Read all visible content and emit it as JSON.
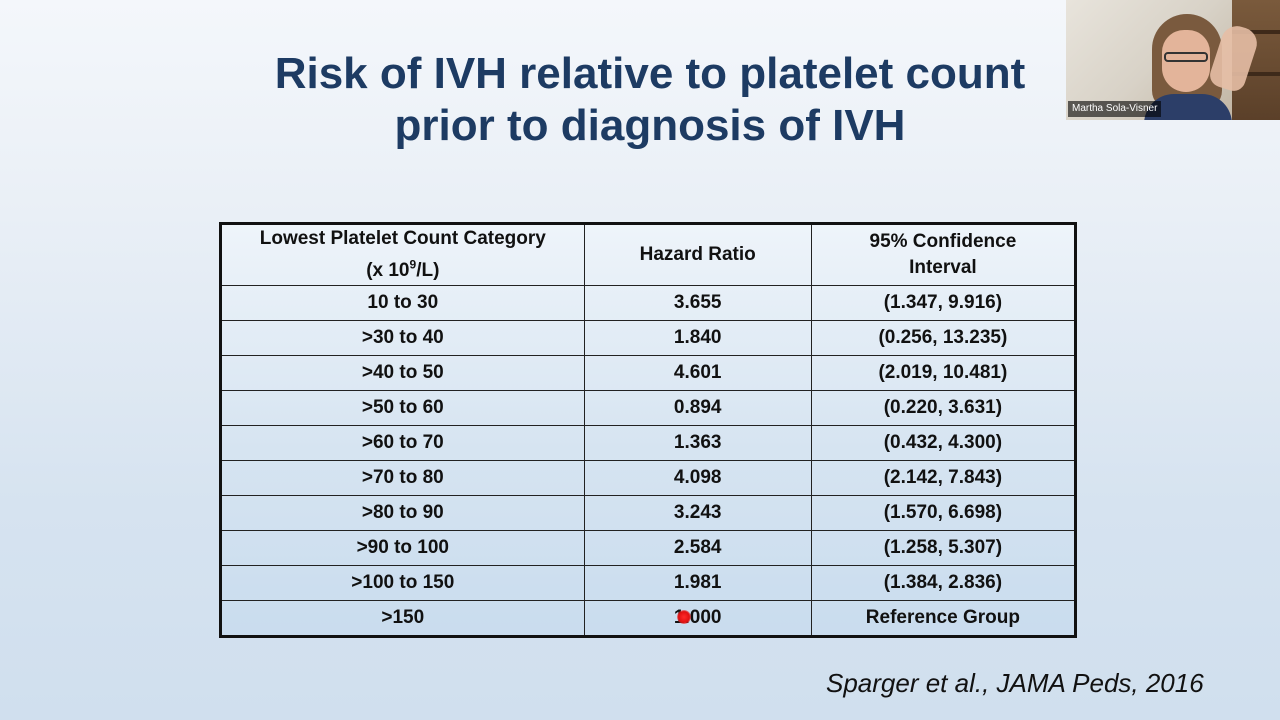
{
  "slide": {
    "title_line1": "Risk of IVH relative to platelet count",
    "title_line2": "prior to diagnosis of IVH",
    "citation": "Sparger et al., JAMA Peds, 2016"
  },
  "table": {
    "headers": {
      "col1_line1": "Lowest Platelet Count Category",
      "col1_unit_prefix": "(x 10",
      "col1_unit_sup": "9",
      "col1_unit_suffix": "/L)",
      "col2": "Hazard Ratio",
      "col3_line1": "95% Confidence",
      "col3_line2": "Interval"
    },
    "rows": [
      {
        "category": "10 to 30",
        "hazard_ratio": "3.655",
        "ci": "(1.347, 9.916)"
      },
      {
        "category": ">30 to 40",
        "hazard_ratio": "1.840",
        "ci": "(0.256, 13.235)"
      },
      {
        "category": ">40 to 50",
        "hazard_ratio": "4.601",
        "ci": "(2.019, 10.481)"
      },
      {
        "category": ">50 to 60",
        "hazard_ratio": "0.894",
        "ci": "(0.220, 3.631)"
      },
      {
        "category": ">60 to 70",
        "hazard_ratio": "1.363",
        "ci": "(0.432, 4.300)"
      },
      {
        "category": ">70 to 80",
        "hazard_ratio": "4.098",
        "ci": "(2.142, 7.843)"
      },
      {
        "category": ">80 to 90",
        "hazard_ratio": "3.243",
        "ci": "(1.570, 6.698)"
      },
      {
        "category": ">90 to 100",
        "hazard_ratio": "2.584",
        "ci": "(1.258, 5.307)"
      },
      {
        "category": ">100 to 150",
        "hazard_ratio": "1.981",
        "ci": "(1.384, 2.836)"
      },
      {
        "category": ">150",
        "hazard_ratio": "1.000",
        "ci": "Reference Group"
      }
    ]
  },
  "video": {
    "participant_name": "Martha Sola-Visner"
  },
  "colors": {
    "title": "#1d3b63",
    "pointer": "#e01010"
  }
}
